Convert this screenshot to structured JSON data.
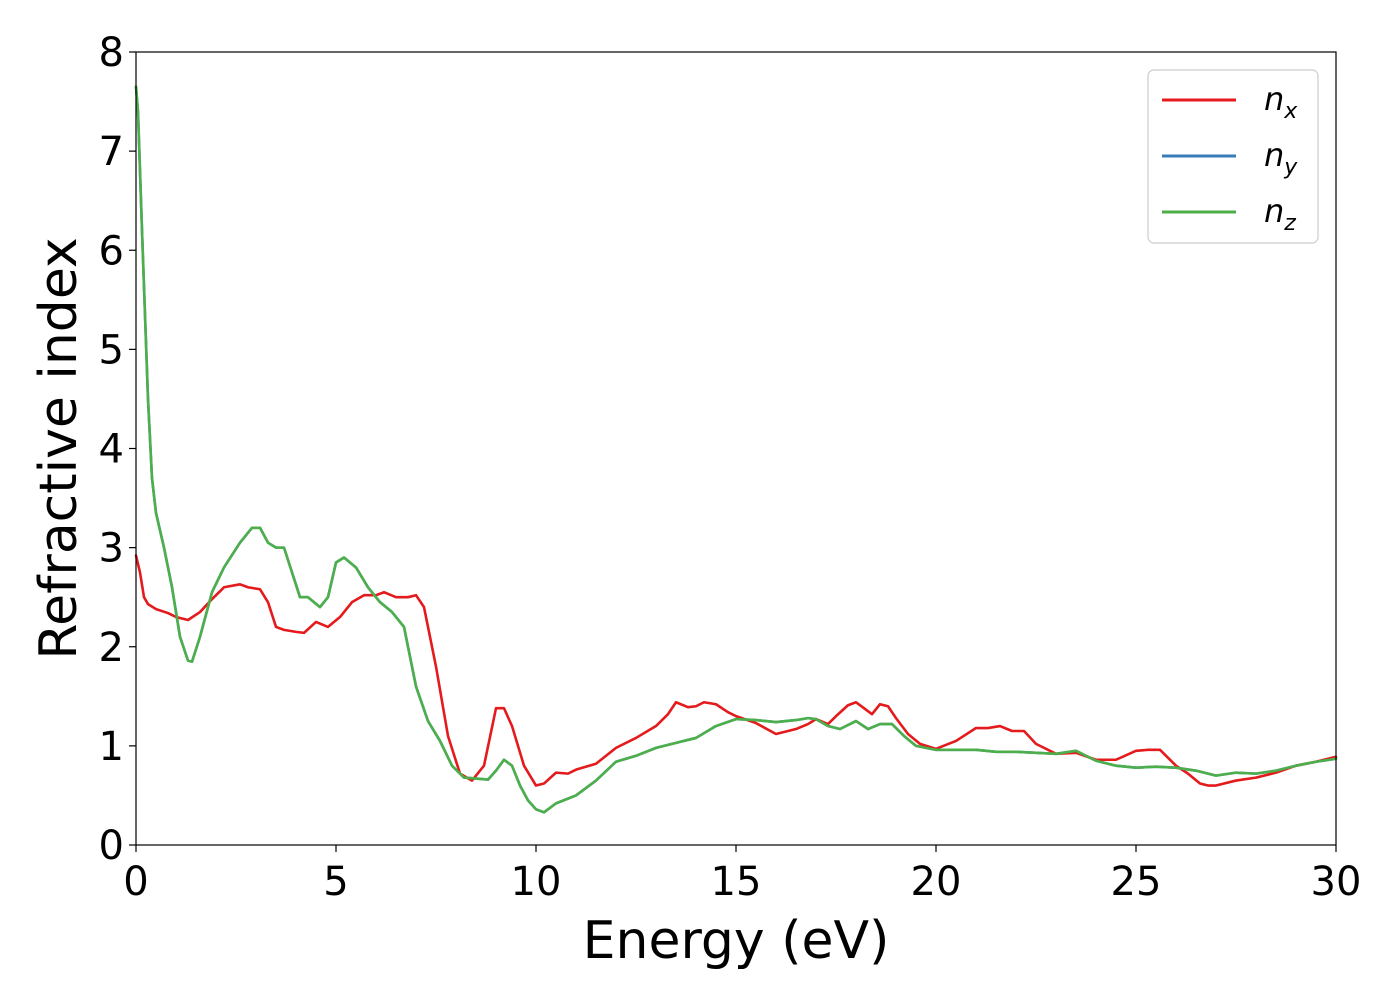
{
  "chart_data": {
    "type": "line",
    "xlabel": "Energy (eV)",
    "ylabel": "Refractive index",
    "xlim": [
      0,
      30
    ],
    "ylim": [
      0,
      8
    ],
    "xticks": [
      0,
      5,
      10,
      15,
      20,
      25,
      30
    ],
    "yticks": [
      0,
      1,
      2,
      3,
      4,
      5,
      6,
      7,
      8
    ],
    "grid": false,
    "legend_position": "top-right",
    "series": [
      {
        "name": "n_x",
        "symbol": "n",
        "subscript": "x",
        "color": "#e41a1c",
        "x": [
          0,
          0.1,
          0.2,
          0.3,
          0.5,
          0.8,
          1.0,
          1.3,
          1.6,
          1.9,
          2.2,
          2.6,
          2.8,
          3.1,
          3.3,
          3.5,
          3.7,
          4.0,
          4.2,
          4.5,
          4.8,
          5.1,
          5.4,
          5.7,
          6.0,
          6.2,
          6.5,
          6.8,
          7.0,
          7.2,
          7.5,
          7.8,
          8.1,
          8.4,
          8.7,
          9.0,
          9.2,
          9.4,
          9.7,
          10.0,
          10.2,
          10.5,
          10.8,
          11.0,
          11.5,
          12.0,
          12.5,
          13.0,
          13.3,
          13.5,
          13.8,
          14.0,
          14.2,
          14.5,
          14.8,
          15.0,
          15.5,
          16.0,
          16.5,
          16.8,
          17.0,
          17.3,
          17.5,
          17.8,
          18.0,
          18.2,
          18.4,
          18.6,
          18.8,
          19.0,
          19.3,
          19.6,
          20.0,
          20.5,
          21.0,
          21.3,
          21.6,
          21.9,
          22.2,
          22.5,
          23.0,
          23.5,
          24.0,
          24.5,
          25.0,
          25.3,
          25.6,
          26.0,
          26.3,
          26.6,
          26.8,
          27.0,
          27.5,
          28.0,
          28.5,
          29.0,
          29.5,
          30.0
        ],
        "y": [
          2.92,
          2.75,
          2.5,
          2.43,
          2.38,
          2.34,
          2.3,
          2.27,
          2.35,
          2.48,
          2.6,
          2.63,
          2.6,
          2.58,
          2.45,
          2.2,
          2.17,
          2.15,
          2.14,
          2.25,
          2.2,
          2.3,
          2.45,
          2.52,
          2.52,
          2.55,
          2.5,
          2.5,
          2.52,
          2.4,
          1.8,
          1.1,
          0.72,
          0.65,
          0.8,
          1.38,
          1.38,
          1.2,
          0.8,
          0.6,
          0.62,
          0.73,
          0.72,
          0.76,
          0.82,
          0.98,
          1.08,
          1.2,
          1.32,
          1.44,
          1.39,
          1.4,
          1.44,
          1.42,
          1.34,
          1.3,
          1.23,
          1.12,
          1.17,
          1.22,
          1.27,
          1.22,
          1.3,
          1.41,
          1.44,
          1.38,
          1.32,
          1.42,
          1.4,
          1.28,
          1.12,
          1.02,
          0.97,
          1.05,
          1.18,
          1.18,
          1.2,
          1.15,
          1.15,
          1.02,
          0.92,
          0.93,
          0.86,
          0.86,
          0.95,
          0.96,
          0.96,
          0.8,
          0.72,
          0.62,
          0.6,
          0.6,
          0.65,
          0.68,
          0.73,
          0.8,
          0.84,
          0.89
        ]
      },
      {
        "name": "n_y",
        "symbol": "n",
        "subscript": "y",
        "color": "#377eb8",
        "x": [
          0,
          0.05,
          0.15,
          0.3,
          0.4,
          0.5,
          0.7,
          0.9,
          1.1,
          1.3,
          1.4,
          1.6,
          1.9,
          2.2,
          2.6,
          2.9,
          3.1,
          3.3,
          3.5,
          3.7,
          3.9,
          4.1,
          4.3,
          4.6,
          4.8,
          5.0,
          5.2,
          5.5,
          5.8,
          6.1,
          6.4,
          6.7,
          7.0,
          7.3,
          7.6,
          7.9,
          8.2,
          8.5,
          8.8,
          9.0,
          9.2,
          9.4,
          9.6,
          9.8,
          10.0,
          10.2,
          10.5,
          11.0,
          11.5,
          12.0,
          12.5,
          13.0,
          13.5,
          14.0,
          14.5,
          15.0,
          15.5,
          16.0,
          16.5,
          16.8,
          17.0,
          17.3,
          17.6,
          18.0,
          18.3,
          18.6,
          18.9,
          19.2,
          19.5,
          20.0,
          20.5,
          21.0,
          21.5,
          22.0,
          22.5,
          23.0,
          23.5,
          24.0,
          24.5,
          25.0,
          25.5,
          26.0,
          26.5,
          27.0,
          27.5,
          28.0,
          28.5,
          29.0,
          29.5,
          30.0
        ],
        "y": [
          7.65,
          7.4,
          6.2,
          4.5,
          3.7,
          3.35,
          3.0,
          2.6,
          2.1,
          1.86,
          1.85,
          2.1,
          2.55,
          2.8,
          3.05,
          3.2,
          3.2,
          3.05,
          3.0,
          3.0,
          2.75,
          2.5,
          2.5,
          2.4,
          2.5,
          2.85,
          2.9,
          2.8,
          2.6,
          2.45,
          2.35,
          2.2,
          1.6,
          1.25,
          1.05,
          0.8,
          0.68,
          0.67,
          0.66,
          0.75,
          0.86,
          0.8,
          0.6,
          0.45,
          0.36,
          0.33,
          0.42,
          0.5,
          0.65,
          0.84,
          0.9,
          0.98,
          1.03,
          1.08,
          1.2,
          1.27,
          1.26,
          1.24,
          1.26,
          1.28,
          1.27,
          1.2,
          1.17,
          1.25,
          1.17,
          1.22,
          1.22,
          1.1,
          1.0,
          0.96,
          0.96,
          0.96,
          0.94,
          0.94,
          0.93,
          0.92,
          0.95,
          0.85,
          0.8,
          0.78,
          0.79,
          0.78,
          0.75,
          0.7,
          0.73,
          0.72,
          0.75,
          0.8,
          0.84,
          0.87
        ]
      },
      {
        "name": "n_z",
        "symbol": "n",
        "subscript": "z",
        "color": "#4daf4a",
        "x": [
          0,
          0.05,
          0.15,
          0.3,
          0.4,
          0.5,
          0.7,
          0.9,
          1.1,
          1.3,
          1.4,
          1.6,
          1.9,
          2.2,
          2.6,
          2.9,
          3.1,
          3.3,
          3.5,
          3.7,
          3.9,
          4.1,
          4.3,
          4.6,
          4.8,
          5.0,
          5.2,
          5.5,
          5.8,
          6.1,
          6.4,
          6.7,
          7.0,
          7.3,
          7.6,
          7.9,
          8.2,
          8.5,
          8.8,
          9.0,
          9.2,
          9.4,
          9.6,
          9.8,
          10.0,
          10.2,
          10.5,
          11.0,
          11.5,
          12.0,
          12.5,
          13.0,
          13.5,
          14.0,
          14.5,
          15.0,
          15.5,
          16.0,
          16.5,
          16.8,
          17.0,
          17.3,
          17.6,
          18.0,
          18.3,
          18.6,
          18.9,
          19.2,
          19.5,
          20.0,
          20.5,
          21.0,
          21.5,
          22.0,
          22.5,
          23.0,
          23.5,
          24.0,
          24.5,
          25.0,
          25.5,
          26.0,
          26.5,
          27.0,
          27.5,
          28.0,
          28.5,
          29.0,
          29.5,
          30.0
        ],
        "y": [
          7.65,
          7.4,
          6.2,
          4.5,
          3.7,
          3.35,
          3.0,
          2.6,
          2.1,
          1.86,
          1.85,
          2.1,
          2.55,
          2.8,
          3.05,
          3.2,
          3.2,
          3.05,
          3.0,
          3.0,
          2.75,
          2.5,
          2.5,
          2.4,
          2.5,
          2.85,
          2.9,
          2.8,
          2.6,
          2.45,
          2.35,
          2.2,
          1.6,
          1.25,
          1.05,
          0.8,
          0.68,
          0.67,
          0.66,
          0.75,
          0.86,
          0.8,
          0.6,
          0.45,
          0.36,
          0.33,
          0.42,
          0.5,
          0.65,
          0.84,
          0.9,
          0.98,
          1.03,
          1.08,
          1.2,
          1.27,
          1.26,
          1.24,
          1.26,
          1.28,
          1.27,
          1.2,
          1.17,
          1.25,
          1.17,
          1.22,
          1.22,
          1.1,
          1.0,
          0.96,
          0.96,
          0.96,
          0.94,
          0.94,
          0.93,
          0.92,
          0.95,
          0.85,
          0.8,
          0.78,
          0.79,
          0.78,
          0.75,
          0.7,
          0.73,
          0.72,
          0.75,
          0.8,
          0.84,
          0.87
        ]
      }
    ]
  }
}
